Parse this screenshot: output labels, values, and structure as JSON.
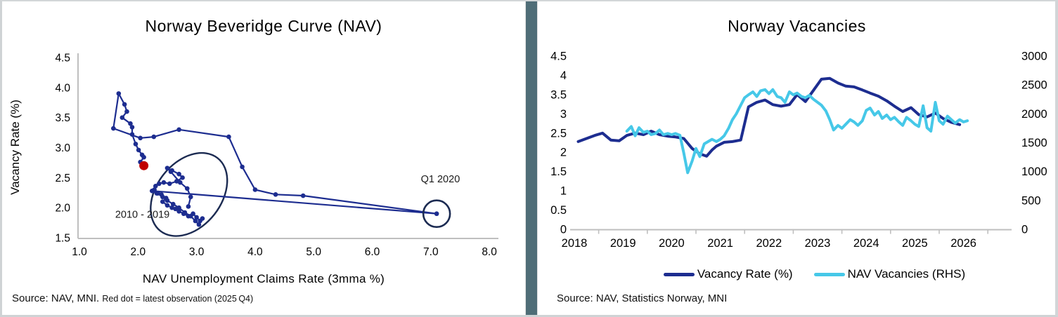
{
  "colors": {
    "navy": "#1d2d90",
    "cyan": "#46c8e8",
    "red_dot": "#c00000",
    "annotation": "#1c2b52",
    "axis": "#bfbfbf",
    "divider": "#4f6d77"
  },
  "chart_data": [
    {
      "type": "scatter",
      "title": "Norway Beveridge Curve (NAV)",
      "xlabel": "NAV Unemployment Claims Rate (3mma %)",
      "ylabel": "Vacancy Rate (%)",
      "xlim": [
        1.0,
        8.0
      ],
      "ylim": [
        1.5,
        4.5
      ],
      "x_ticks": [
        "1.0",
        "2.0",
        "3.0",
        "4.0",
        "5.0",
        "6.0",
        "7.0",
        "8.0"
      ],
      "y_ticks": [
        "4.5",
        "4.0",
        "3.5",
        "3.0",
        "2.5",
        "2.0",
        "1.5"
      ],
      "grid": false,
      "series": [
        {
          "name": "Beveridge path 2010 Q1 - 2025 Q4 (quarterly)",
          "color": "#1d2d90",
          "points": [
            [
              2.86,
              2.02
            ],
            [
              2.9,
              2.18
            ],
            [
              2.84,
              2.32
            ],
            [
              2.72,
              2.42
            ],
            [
              2.56,
              2.6
            ],
            [
              2.5,
              2.66
            ],
            [
              2.58,
              2.62
            ],
            [
              2.7,
              2.56
            ],
            [
              2.76,
              2.5
            ],
            [
              2.66,
              2.44
            ],
            [
              2.54,
              2.4
            ],
            [
              2.44,
              2.42
            ],
            [
              2.36,
              2.4
            ],
            [
              2.3,
              2.36
            ],
            [
              2.26,
              2.28
            ],
            [
              2.32,
              2.24
            ],
            [
              2.4,
              2.22
            ],
            [
              2.48,
              2.16
            ],
            [
              2.42,
              2.1
            ],
            [
              2.5,
              2.04
            ],
            [
              2.58,
              2.0
            ],
            [
              2.64,
              1.98
            ],
            [
              2.7,
              1.94
            ],
            [
              2.78,
              1.9
            ],
            [
              2.86,
              1.86
            ],
            [
              2.94,
              1.9
            ],
            [
              3.0,
              1.84
            ],
            [
              3.06,
              1.78
            ],
            [
              3.1,
              1.82
            ],
            [
              3.04,
              1.72
            ],
            [
              2.98,
              1.78
            ],
            [
              2.9,
              1.86
            ],
            [
              2.8,
              1.92
            ],
            [
              2.7,
              2.0
            ],
            [
              2.6,
              2.06
            ],
            [
              2.5,
              2.12
            ],
            [
              2.42,
              2.18
            ],
            [
              2.34,
              2.24
            ],
            [
              2.28,
              2.3
            ],
            [
              2.24,
              2.28
            ],
            [
              7.1,
              1.9
            ],
            [
              4.82,
              2.2
            ],
            [
              4.35,
              2.22
            ],
            [
              4.0,
              2.3
            ],
            [
              3.78,
              2.68
            ],
            [
              3.55,
              3.18
            ],
            [
              2.7,
              3.3
            ],
            [
              2.27,
              3.18
            ],
            [
              2.04,
              3.16
            ],
            [
              1.58,
              3.32
            ],
            [
              1.67,
              3.9
            ],
            [
              1.77,
              3.72
            ],
            [
              1.81,
              3.6
            ],
            [
              1.73,
              3.5
            ],
            [
              1.87,
              3.4
            ],
            [
              1.9,
              3.34
            ],
            [
              1.9,
              3.22
            ],
            [
              1.96,
              3.06
            ],
            [
              2.01,
              2.96
            ],
            [
              2.07,
              2.88
            ],
            [
              2.1,
              2.84
            ],
            [
              2.04,
              2.76
            ],
            [
              2.08,
              2.7
            ],
            [
              2.1,
              2.7
            ]
          ]
        }
      ],
      "latest_point": {
        "x": 2.1,
        "y": 2.7,
        "label": "2025 Q4",
        "color": "#c00000"
      },
      "ellipse_annotation": {
        "cx": 2.87,
        "cy": 2.22,
        "label": "2010 - 2019"
      },
      "circle_annotation": {
        "x": 7.1,
        "y": 1.9,
        "label": "Q1 2020"
      },
      "annotations": [
        {
          "text": "Q1 2020",
          "x": 6.83,
          "y": 2.42
        },
        {
          "text": "2010 - 2019",
          "x": 1.61,
          "y": 1.83
        }
      ],
      "source": "Source: NAV, MNI.",
      "source_note": "Red dot = latest observation (2025 Q4)"
    },
    {
      "type": "line",
      "title": "Norway Vacancies",
      "xlabel": "",
      "ylabel_left": "",
      "xlim": [
        2018,
        2027
      ],
      "ylim_left": [
        0,
        4.5
      ],
      "ylim_right": [
        0,
        3000
      ],
      "x_ticks": [
        "2018",
        "2019",
        "2020",
        "2021",
        "2022",
        "2023",
        "2024",
        "2025",
        "2026"
      ],
      "y_ticks_left": [
        "4.5",
        "4",
        "3.5",
        "3",
        "2.5",
        "2",
        "1.5",
        "1",
        "0.5",
        "0"
      ],
      "y_ticks_right": [
        "3000",
        "2500",
        "2000",
        "1500",
        "1000",
        "500",
        "0"
      ],
      "grid": false,
      "legend_position": "bottom",
      "series": [
        {
          "name": "Vacancy Rate (%)",
          "axis": "left",
          "color": "#1d2d90",
          "points": [
            [
              2018.08,
              2.28
            ],
            [
              2018.25,
              2.36
            ],
            [
              2018.42,
              2.44
            ],
            [
              2018.58,
              2.5
            ],
            [
              2018.75,
              2.32
            ],
            [
              2018.92,
              2.3
            ],
            [
              2019.08,
              2.44
            ],
            [
              2019.25,
              2.5
            ],
            [
              2019.42,
              2.46
            ],
            [
              2019.58,
              2.55
            ],
            [
              2019.75,
              2.46
            ],
            [
              2019.92,
              2.42
            ],
            [
              2020.08,
              2.4
            ],
            [
              2020.25,
              2.36
            ],
            [
              2020.42,
              2.1
            ],
            [
              2020.58,
              1.96
            ],
            [
              2020.72,
              1.9
            ],
            [
              2020.83,
              2.06
            ],
            [
              2020.92,
              2.16
            ],
            [
              2021.08,
              2.26
            ],
            [
              2021.25,
              2.28
            ],
            [
              2021.42,
              2.32
            ],
            [
              2021.58,
              3.18
            ],
            [
              2021.75,
              3.3
            ],
            [
              2021.92,
              3.36
            ],
            [
              2022.08,
              3.24
            ],
            [
              2022.25,
              3.2
            ],
            [
              2022.42,
              3.24
            ],
            [
              2022.58,
              3.5
            ],
            [
              2022.75,
              3.32
            ],
            [
              2022.92,
              3.62
            ],
            [
              2023.08,
              3.9
            ],
            [
              2023.25,
              3.92
            ],
            [
              2023.42,
              3.8
            ],
            [
              2023.58,
              3.72
            ],
            [
              2023.75,
              3.7
            ],
            [
              2023.92,
              3.62
            ],
            [
              2024.08,
              3.54
            ],
            [
              2024.25,
              3.46
            ],
            [
              2024.42,
              3.34
            ],
            [
              2024.58,
              3.2
            ],
            [
              2024.75,
              3.06
            ],
            [
              2024.92,
              3.16
            ],
            [
              2025.08,
              2.98
            ],
            [
              2025.25,
              2.92
            ],
            [
              2025.42,
              3.02
            ],
            [
              2025.58,
              2.88
            ],
            [
              2025.75,
              2.78
            ],
            [
              2025.92,
              2.72
            ]
          ]
        },
        {
          "name": "NAV Vacancies (RHS)",
          "axis": "right",
          "color": "#46c8e8",
          "points": [
            [
              2019.08,
              1700
            ],
            [
              2019.17,
              1780
            ],
            [
              2019.25,
              1620
            ],
            [
              2019.33,
              1760
            ],
            [
              2019.42,
              1680
            ],
            [
              2019.5,
              1700
            ],
            [
              2019.58,
              1640
            ],
            [
              2019.67,
              1660
            ],
            [
              2019.75,
              1720
            ],
            [
              2019.83,
              1640
            ],
            [
              2019.92,
              1660
            ],
            [
              2020.0,
              1640
            ],
            [
              2020.08,
              1660
            ],
            [
              2020.17,
              1630
            ],
            [
              2020.25,
              1320
            ],
            [
              2020.33,
              980
            ],
            [
              2020.42,
              1180
            ],
            [
              2020.5,
              1400
            ],
            [
              2020.58,
              1260
            ],
            [
              2020.67,
              1480
            ],
            [
              2020.75,
              1520
            ],
            [
              2020.83,
              1560
            ],
            [
              2020.92,
              1520
            ],
            [
              2021.0,
              1560
            ],
            [
              2021.08,
              1620
            ],
            [
              2021.17,
              1750
            ],
            [
              2021.25,
              1900
            ],
            [
              2021.33,
              2000
            ],
            [
              2021.42,
              2150
            ],
            [
              2021.5,
              2280
            ],
            [
              2021.58,
              2330
            ],
            [
              2021.67,
              2380
            ],
            [
              2021.75,
              2300
            ],
            [
              2021.83,
              2400
            ],
            [
              2021.92,
              2420
            ],
            [
              2022.0,
              2350
            ],
            [
              2022.08,
              2420
            ],
            [
              2022.17,
              2300
            ],
            [
              2022.25,
              2280
            ],
            [
              2022.33,
              2200
            ],
            [
              2022.42,
              2380
            ],
            [
              2022.5,
              2330
            ],
            [
              2022.58,
              2360
            ],
            [
              2022.67,
              2300
            ],
            [
              2022.75,
              2280
            ],
            [
              2022.83,
              2320
            ],
            [
              2022.92,
              2250
            ],
            [
              2023.0,
              2200
            ],
            [
              2023.08,
              2150
            ],
            [
              2023.17,
              2050
            ],
            [
              2023.25,
              1900
            ],
            [
              2023.33,
              1720
            ],
            [
              2023.42,
              1800
            ],
            [
              2023.5,
              1750
            ],
            [
              2023.58,
              1820
            ],
            [
              2023.67,
              1900
            ],
            [
              2023.75,
              1860
            ],
            [
              2023.83,
              1800
            ],
            [
              2023.92,
              1880
            ],
            [
              2024.0,
              2060
            ],
            [
              2024.08,
              2100
            ],
            [
              2024.17,
              1980
            ],
            [
              2024.25,
              2040
            ],
            [
              2024.33,
              1920
            ],
            [
              2024.42,
              1980
            ],
            [
              2024.5,
              1900
            ],
            [
              2024.58,
              1940
            ],
            [
              2024.67,
              1860
            ],
            [
              2024.75,
              1800
            ],
            [
              2024.83,
              1940
            ],
            [
              2024.92,
              1880
            ],
            [
              2025.0,
              1820
            ],
            [
              2025.08,
              1780
            ],
            [
              2025.17,
              2140
            ],
            [
              2025.25,
              1760
            ],
            [
              2025.33,
              1700
            ],
            [
              2025.42,
              2200
            ],
            [
              2025.5,
              1880
            ],
            [
              2025.58,
              1820
            ],
            [
              2025.67,
              1960
            ],
            [
              2025.75,
              1900
            ],
            [
              2025.83,
              1840
            ],
            [
              2025.92,
              1900
            ],
            [
              2026.0,
              1860
            ],
            [
              2026.08,
              1880
            ]
          ]
        }
      ],
      "source": "Source: NAV, Statistics Norway, MNI"
    }
  ]
}
